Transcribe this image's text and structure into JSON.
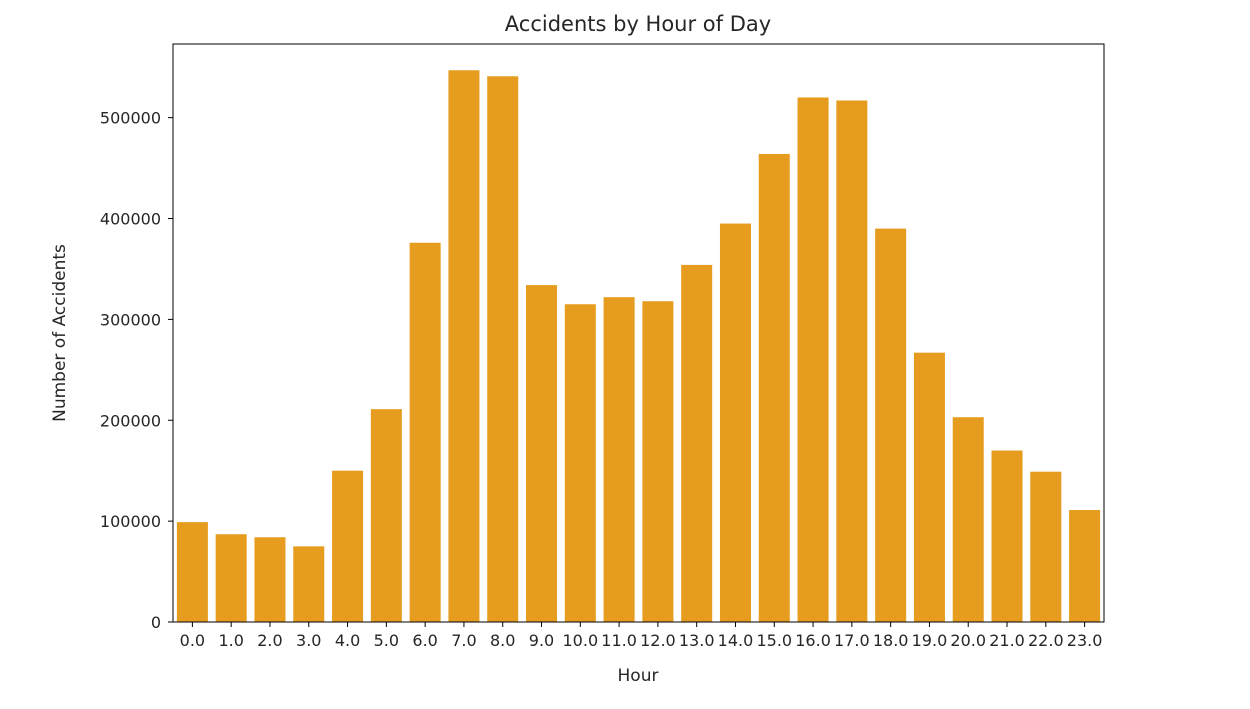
{
  "chart_data": {
    "type": "bar",
    "title": "Accidents by Hour of Day",
    "xlabel": "Hour",
    "ylabel": "Number of Accidents",
    "categories": [
      "0.0",
      "1.0",
      "2.0",
      "3.0",
      "4.0",
      "5.0",
      "6.0",
      "7.0",
      "8.0",
      "9.0",
      "10.0",
      "11.0",
      "12.0",
      "13.0",
      "14.0",
      "15.0",
      "16.0",
      "17.0",
      "18.0",
      "19.0",
      "20.0",
      "21.0",
      "22.0",
      "23.0"
    ],
    "values": [
      99000,
      87000,
      84000,
      75000,
      150000,
      211000,
      376000,
      547000,
      541000,
      334000,
      315000,
      322000,
      318000,
      354000,
      395000,
      464000,
      520000,
      517000,
      390000,
      267000,
      203000,
      170000,
      149000,
      111000
    ],
    "ylim": [
      0,
      573000
    ],
    "yticks": [
      0,
      100000,
      200000,
      300000,
      400000,
      500000
    ],
    "ytick_labels": [
      "0",
      "100000",
      "200000",
      "300000",
      "400000",
      "500000"
    ],
    "grid": false,
    "legend": "none",
    "bar_color": "#e69d1f"
  }
}
